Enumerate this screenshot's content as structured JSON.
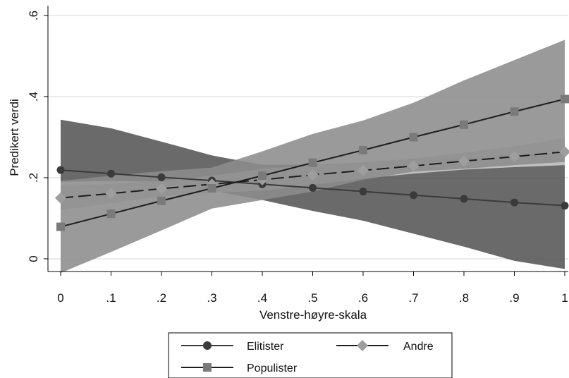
{
  "chart_data": {
    "type": "line",
    "xlabel": "Venstre-høyre-skala",
    "ylabel": "Predikert verdi",
    "xlim": [
      0,
      1
    ],
    "ylim": [
      0,
      0.6
    ],
    "x_ticks": [
      0,
      0.1,
      0.2,
      0.3,
      0.4,
      0.5,
      0.6,
      0.7,
      0.8,
      0.9,
      1
    ],
    "x_tick_labels": [
      "0",
      ".1",
      ".2",
      ".3",
      ".4",
      ".5",
      ".6",
      ".7",
      ".8",
      ".9",
      "1"
    ],
    "y_ticks": [
      0,
      0.2,
      0.4,
      0.6
    ],
    "y_tick_labels": [
      "0",
      ".2",
      ".4",
      ".6"
    ],
    "grid": "horizontal",
    "legend_position": "bottom",
    "x": [
      0,
      0.1,
      0.2,
      0.3,
      0.4,
      0.5,
      0.6,
      0.7,
      0.8,
      0.9,
      1
    ],
    "series": [
      {
        "name": "Elitister",
        "marker": "circle",
        "line_style": "solid",
        "color": "#3a3a3a",
        "band_color": "#555555",
        "values": [
          0.219,
          0.21,
          0.201,
          0.193,
          0.184,
          0.175,
          0.166,
          0.157,
          0.148,
          0.139,
          0.131
        ],
        "ci_low": [
          0.19,
          0.192,
          0.19,
          0.168,
          0.145,
          0.118,
          0.094,
          0.062,
          0.03,
          -0.005,
          -0.025
        ],
        "ci_high": [
          0.343,
          0.322,
          0.289,
          0.255,
          0.232,
          0.232,
          0.238,
          0.245,
          0.252,
          0.258,
          0.263
        ]
      },
      {
        "name": "Andre",
        "marker": "diamond",
        "line_style": "dashed",
        "color": "#1e1e1e",
        "band_color": "#c9c9c9",
        "values": [
          0.15,
          0.161,
          0.173,
          0.184,
          0.195,
          0.207,
          0.218,
          0.229,
          0.241,
          0.252,
          0.264
        ],
        "ci_low": [
          0.12,
          0.137,
          0.154,
          0.163,
          0.168,
          0.183,
          0.198,
          0.21,
          0.22,
          0.226,
          0.231
        ],
        "ci_high": [
          0.18,
          0.185,
          0.192,
          0.205,
          0.222,
          0.231,
          0.238,
          0.248,
          0.262,
          0.278,
          0.297
        ]
      },
      {
        "name": "Populister",
        "marker": "square",
        "line_style": "solid",
        "color": "#1e1e1e",
        "band_color": "#8c8c8c",
        "values": [
          0.079,
          0.111,
          0.143,
          0.174,
          0.205,
          0.237,
          0.268,
          0.3,
          0.331,
          0.363,
          0.394
        ],
        "ci_low": [
          -0.035,
          0.017,
          0.07,
          0.124,
          0.145,
          0.166,
          0.195,
          0.215,
          0.222,
          0.231,
          0.239
        ],
        "ci_high": [
          0.192,
          0.205,
          0.216,
          0.225,
          0.265,
          0.308,
          0.341,
          0.385,
          0.44,
          0.49,
          0.54
        ]
      }
    ]
  }
}
